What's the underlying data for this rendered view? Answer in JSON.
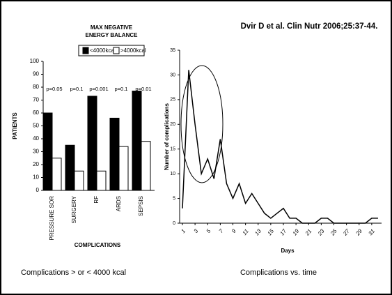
{
  "citation": "Dvir D et al. Clin Nutr 2006;25:37-44.",
  "chart_data": [
    {
      "type": "bar",
      "title": [
        "MAX NEGATIVE",
        "ENERGY BALANCE"
      ],
      "categories": [
        "PRESSURE SOR",
        "SURGERY",
        "RF",
        "ARDS",
        "SEPSIS"
      ],
      "series": [
        {
          "name": "<4000kcal",
          "color": "#000000",
          "values": [
            60,
            35,
            73,
            56,
            77
          ]
        },
        {
          "name": ">4000kcal",
          "color": "#ffffff",
          "values": [
            25,
            15,
            15,
            34,
            38
          ]
        }
      ],
      "annotations": [
        "p=0.05",
        "p=0.1",
        "p=0.001",
        "p=0.1",
        "p=0.01"
      ],
      "ylabel": "PATIENTS",
      "xlabel": "COMPLICATIONS",
      "ylim": [
        0,
        100
      ],
      "yticks": [
        0,
        10,
        20,
        30,
        40,
        50,
        60,
        70,
        80,
        90,
        100
      ],
      "caption": "Complications > or < 4000 kcal"
    },
    {
      "type": "line",
      "x": [
        1,
        2,
        3,
        4,
        5,
        6,
        7,
        8,
        9,
        10,
        11,
        12,
        13,
        14,
        15,
        16,
        17,
        18,
        19,
        20,
        21,
        22,
        23,
        24,
        25,
        26,
        27,
        28,
        29,
        30,
        31,
        32
      ],
      "series": [
        {
          "name": "Number of complications",
          "color": "#000000",
          "values": [
            3,
            31,
            20,
            10,
            13,
            9,
            17,
            8,
            5,
            8,
            4,
            6,
            4,
            2,
            1,
            2,
            3,
            1,
            1,
            0,
            0,
            0,
            1,
            1,
            0,
            0,
            0,
            0,
            0,
            0,
            1,
            1
          ]
        }
      ],
      "ylabel": "Number of complications",
      "xlabel": "Days",
      "xlim": [
        1,
        33
      ],
      "xticks": [
        1,
        3,
        5,
        7,
        9,
        11,
        13,
        15,
        17,
        19,
        21,
        23,
        25,
        27,
        29,
        31
      ],
      "ylim": [
        0,
        35
      ],
      "yticks": [
        0,
        5,
        10,
        15,
        20,
        25,
        30,
        35
      ],
      "caption": "Complications vs. time"
    }
  ]
}
